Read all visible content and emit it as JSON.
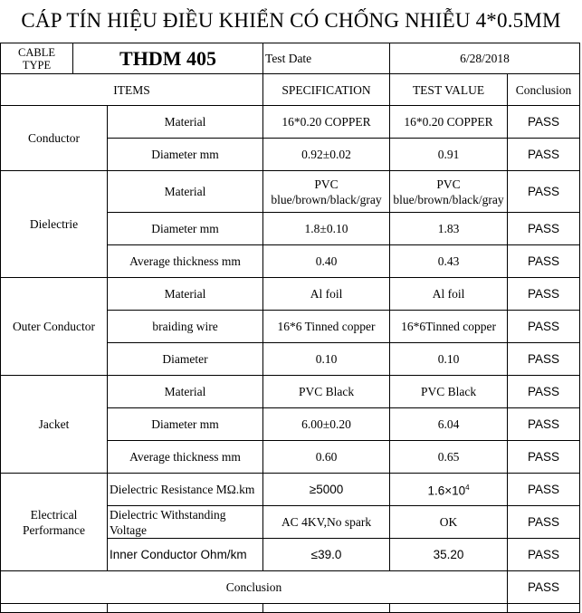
{
  "title": "CÁP TÍN HIỆU ĐIỀU KHIỂN CÓ CHỐNG NHIỄU 4*0.5MM",
  "info": {
    "cable_type_label": "CABLE TYPE",
    "cable_type": "THDM 405",
    "test_date_label": "Test Date",
    "test_date": "6/28/2018"
  },
  "headers": {
    "items": "ITEMS",
    "specification": "SPECIFICATION",
    "test_value": "TEST VALUE",
    "conclusion": "Conclusion"
  },
  "groups": [
    {
      "name": "Conductor",
      "rows": [
        {
          "item": "Material",
          "spec": "16*0.20  COPPER",
          "value": "16*0.20 COPPER",
          "result": "PASS"
        },
        {
          "item": "Diameter mm",
          "spec": "0.92±0.02",
          "value": "0.91",
          "result": "PASS"
        }
      ]
    },
    {
      "name": "Dielectrie",
      "rows": [
        {
          "item": "Material",
          "spec": "PVC blue/brown/black/gray",
          "value": "PVC blue/brown/black/gray",
          "result": "PASS"
        },
        {
          "item": "Diameter mm",
          "spec": "1.8±0.10",
          "value": "1.83",
          "result": "PASS"
        },
        {
          "item": "Average thickness mm",
          "spec": "0.40",
          "value": "0.43",
          "result": "PASS"
        }
      ]
    },
    {
      "name": "Outer Conductor",
      "rows": [
        {
          "item": "Material",
          "spec": "Al foil",
          "value": "Al foil",
          "result": "PASS"
        },
        {
          "item": "braiding wire",
          "spec": "16*6 Tinned copper",
          "value": "16*6Tinned copper",
          "result": "PASS"
        },
        {
          "item": "Diameter",
          "spec": "0.10",
          "value": "0.10",
          "result": "PASS"
        }
      ]
    },
    {
      "name": "Jacket",
      "rows": [
        {
          "item": "Material",
          "spec": "PVC Black",
          "value": "PVC Black",
          "result": "PASS"
        },
        {
          "item": "Diameter mm",
          "spec": "6.00±0.20",
          "value": "6.04",
          "result": "PASS"
        },
        {
          "item": "Average thickness mm",
          "spec": "0.60",
          "value": "0.65",
          "result": "PASS"
        }
      ]
    },
    {
      "name": "Electrical Performance",
      "rows": [
        {
          "item": "Dielectric Resistance MΩ.km",
          "spec": "≥5000",
          "value": "1.6×10",
          "value_exp": "4",
          "result": "PASS"
        },
        {
          "item": "Dielectric Withstanding Voltage",
          "spec": "AC 4KV,No spark",
          "value": "OK",
          "result": "PASS"
        },
        {
          "item": "Inner  Conductor Ohm/km",
          "spec": "≤39.0",
          "value": "35.20",
          "result": "PASS"
        }
      ]
    }
  ],
  "conclusion": {
    "label": "Conclusion",
    "result": "PASS"
  }
}
